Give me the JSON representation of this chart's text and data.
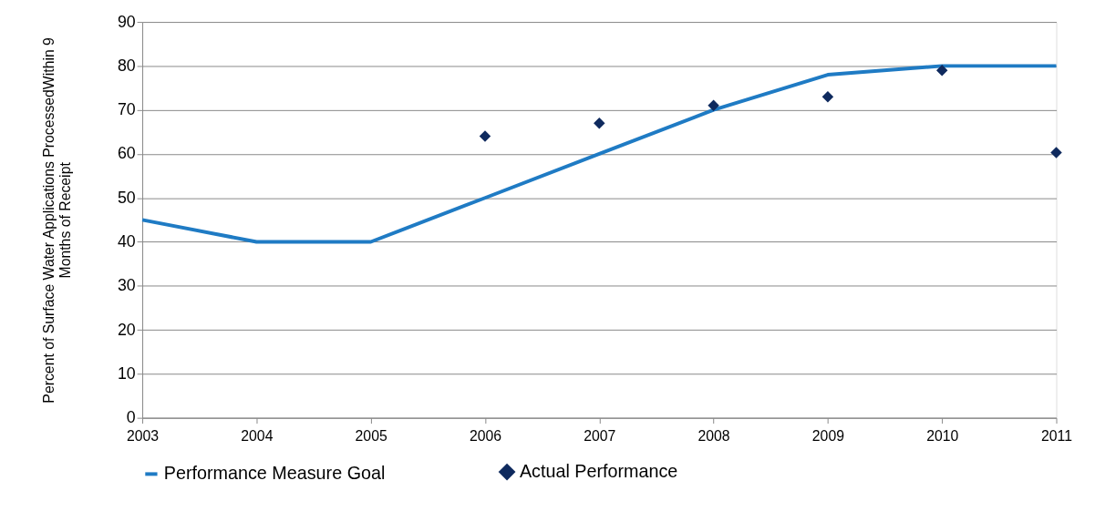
{
  "chart_data": {
    "type": "line",
    "ylabel": "Percent of Surface Water Applications ProcessedWithin 9 Months of Receipt",
    "categories": [
      "2003",
      "2004",
      "2005",
      "2006",
      "2007",
      "2008",
      "2009",
      "2010",
      "2011"
    ],
    "series": [
      {
        "name": "Performance Measure Goal",
        "color": "#1f7bc4",
        "values": [
          45,
          40,
          40,
          50,
          60,
          70,
          78,
          80,
          80
        ]
      },
      {
        "name": "Actual Performance",
        "type": "scatter",
        "marker": "diamond",
        "color": "#0f2a5e",
        "values": [
          null,
          null,
          null,
          64,
          67,
          71,
          73,
          79,
          60.3
        ]
      }
    ],
    "ylim": [
      0,
      90
    ],
    "yticks": [
      0,
      10,
      20,
      30,
      40,
      50,
      60,
      70,
      80,
      90
    ],
    "grid": "y",
    "legend": "bottom"
  }
}
